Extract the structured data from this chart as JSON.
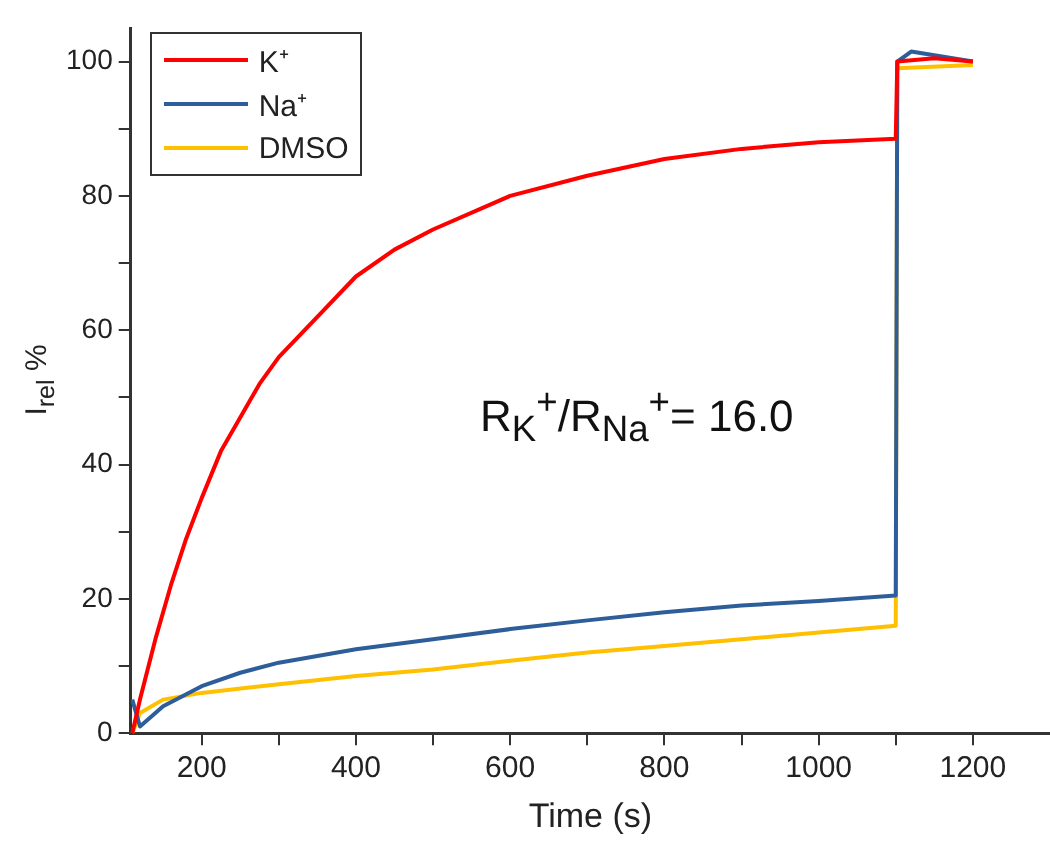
{
  "chart_data": {
    "type": "line",
    "xlabel": "Time (s)",
    "ylabel": "I$_{rel}$ %",
    "xlim": [
      108,
      1300
    ],
    "ylim": [
      0,
      105
    ],
    "xticks": [
      200,
      {
        "value": 300,
        "label": null
      },
      400,
      {
        "value": 500,
        "label": null
      },
      600,
      {
        "value": 700,
        "label": null
      },
      800,
      {
        "value": 900,
        "label": null
      },
      1000,
      {
        "value": 1100,
        "label": null
      },
      1200
    ],
    "yticks": [
      0,
      {
        "value": 10,
        "label": null
      },
      20,
      {
        "value": 30,
        "label": null
      },
      40,
      {
        "value": 50,
        "label": null
      },
      60,
      {
        "value": 70,
        "label": null
      },
      80,
      {
        "value": 90,
        "label": null
      },
      100
    ],
    "grid": false,
    "legend": "top left",
    "marker": "none",
    "line_style": "solid",
    "annotations": [
      "R$_{K}$$^{+}$/R$_{Na}$$^{+}$= 16.0"
    ],
    "series": [
      {
        "name": "K⁺",
        "color": "#ff0000",
        "x": [
          110,
          120,
          140,
          160,
          180,
          200,
          225,
          250,
          275,
          300,
          350,
          400,
          450,
          500,
          600,
          700,
          800,
          900,
          1000,
          1100,
          1102,
          1150,
          1200
        ],
        "values": [
          0,
          5,
          14,
          22,
          29,
          35,
          42,
          47,
          52,
          56,
          62,
          68,
          72,
          75,
          80,
          83,
          85.5,
          87,
          88,
          88.5,
          100,
          100.5,
          100
        ]
      },
      {
        "name": "Na⁺",
        "color": "#2e5e9a",
        "x": [
          110,
          120,
          150,
          200,
          250,
          300,
          400,
          500,
          600,
          700,
          800,
          900,
          1000,
          1100,
          1102,
          1120,
          1200
        ],
        "values": [
          5,
          1,
          4,
          7,
          9,
          10.5,
          12.5,
          14,
          15.5,
          16.8,
          18,
          19,
          19.7,
          20.5,
          100,
          101.5,
          100
        ]
      },
      {
        "name": "DMSO",
        "color": "#ffc000",
        "x": [
          110,
          120,
          150,
          200,
          300,
          400,
          500,
          600,
          700,
          800,
          900,
          1000,
          1100,
          1102,
          1200
        ],
        "values": [
          0,
          3,
          5,
          6,
          7.3,
          8.5,
          9.5,
          10.8,
          12,
          13,
          14,
          15,
          16,
          99,
          99.5
        ]
      }
    ]
  }
}
